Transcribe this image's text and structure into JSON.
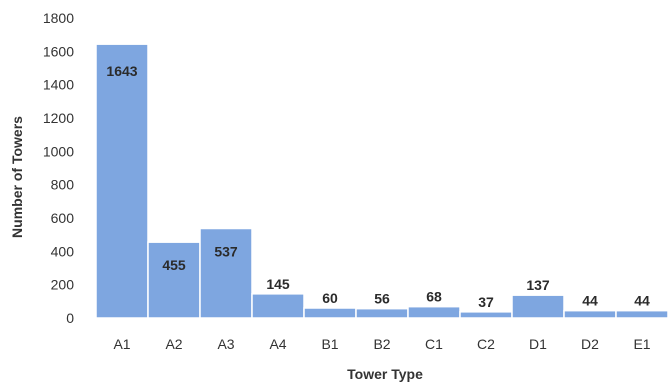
{
  "chart_data": {
    "type": "bar",
    "categories": [
      "A1",
      "A2",
      "A3",
      "A4",
      "B1",
      "B2",
      "C1",
      "C2",
      "D1",
      "D2",
      "E1"
    ],
    "values": [
      1643,
      455,
      537,
      145,
      60,
      56,
      68,
      37,
      137,
      44,
      44
    ],
    "data_labels": [
      "1643",
      "455",
      "537",
      "145",
      "60",
      "56",
      "68",
      "37",
      "137",
      "44",
      "44"
    ],
    "title": "",
    "xlabel": "Tower Type",
    "ylabel": "Number of Towers",
    "ylim": [
      0,
      1800
    ],
    "yticks": [
      "0",
      "200",
      "400",
      "600",
      "800",
      "1000",
      "1200",
      "1400",
      "1600",
      "1800"
    ],
    "grid": false,
    "legend": "none",
    "bar_color": "#7ea6e0",
    "bar_edge_color": "#ffffff"
  }
}
